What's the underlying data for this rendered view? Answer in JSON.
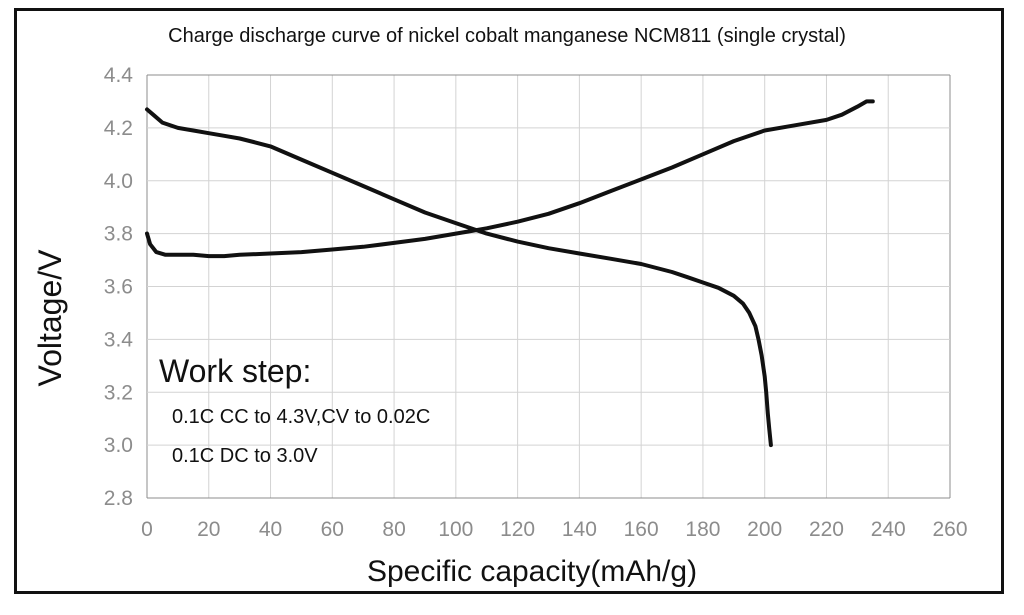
{
  "chart_data": {
    "type": "line",
    "title": "Charge discharge curve of nickel cobalt manganese NCM811 (single crystal)",
    "xlabel": "Specific capacity(mAh/g)",
    "ylabel": "Voltage/V",
    "xlim": [
      0,
      260
    ],
    "ylim": [
      2.8,
      4.4
    ],
    "xticks": [
      "0",
      "20",
      "40",
      "60",
      "80",
      "100",
      "120",
      "140",
      "160",
      "180",
      "200",
      "220",
      "240",
      "260"
    ],
    "yticks": [
      "4.4",
      "4.2",
      "4.0",
      "3.8",
      "3.6",
      "3.4",
      "3.2",
      "3.0",
      "2.8"
    ],
    "grid": true,
    "series": [
      {
        "x": [
          0,
          1,
          3,
          6,
          10,
          15,
          20,
          25,
          30,
          40,
          50,
          60,
          70,
          80,
          90,
          100,
          105,
          110,
          120,
          130,
          140,
          150,
          160,
          170,
          180,
          190,
          200,
          210,
          220,
          225,
          230,
          233,
          235
        ],
        "y": [
          3.8,
          3.76,
          3.73,
          3.72,
          3.72,
          3.72,
          3.715,
          3.715,
          3.72,
          3.725,
          3.73,
          3.74,
          3.75,
          3.765,
          3.78,
          3.8,
          3.81,
          3.82,
          3.845,
          3.875,
          3.915,
          3.96,
          4.005,
          4.05,
          4.1,
          4.15,
          4.19,
          4.21,
          4.23,
          4.25,
          4.28,
          4.3,
          4.3
        ]
      },
      {
        "x": [
          0,
          2,
          5,
          10,
          15,
          20,
          25,
          30,
          35,
          40,
          50,
          60,
          70,
          80,
          90,
          100,
          110,
          120,
          130,
          140,
          150,
          160,
          170,
          175,
          180,
          185,
          190,
          193,
          195,
          197,
          198,
          199,
          200,
          200.5,
          201,
          201.5,
          202
        ],
        "y": [
          4.27,
          4.25,
          4.22,
          4.2,
          4.19,
          4.18,
          4.17,
          4.16,
          4.145,
          4.13,
          4.08,
          4.03,
          3.98,
          3.93,
          3.88,
          3.84,
          3.8,
          3.77,
          3.745,
          3.725,
          3.705,
          3.685,
          3.655,
          3.635,
          3.615,
          3.595,
          3.565,
          3.535,
          3.5,
          3.45,
          3.4,
          3.34,
          3.26,
          3.2,
          3.12,
          3.06,
          3.0
        ]
      }
    ],
    "annotation": {
      "heading": "Work step:",
      "lines": [
        "0.1C CC to 4.3V,CV to 0.02C",
        "0.1C DC to 3.0V"
      ]
    }
  }
}
